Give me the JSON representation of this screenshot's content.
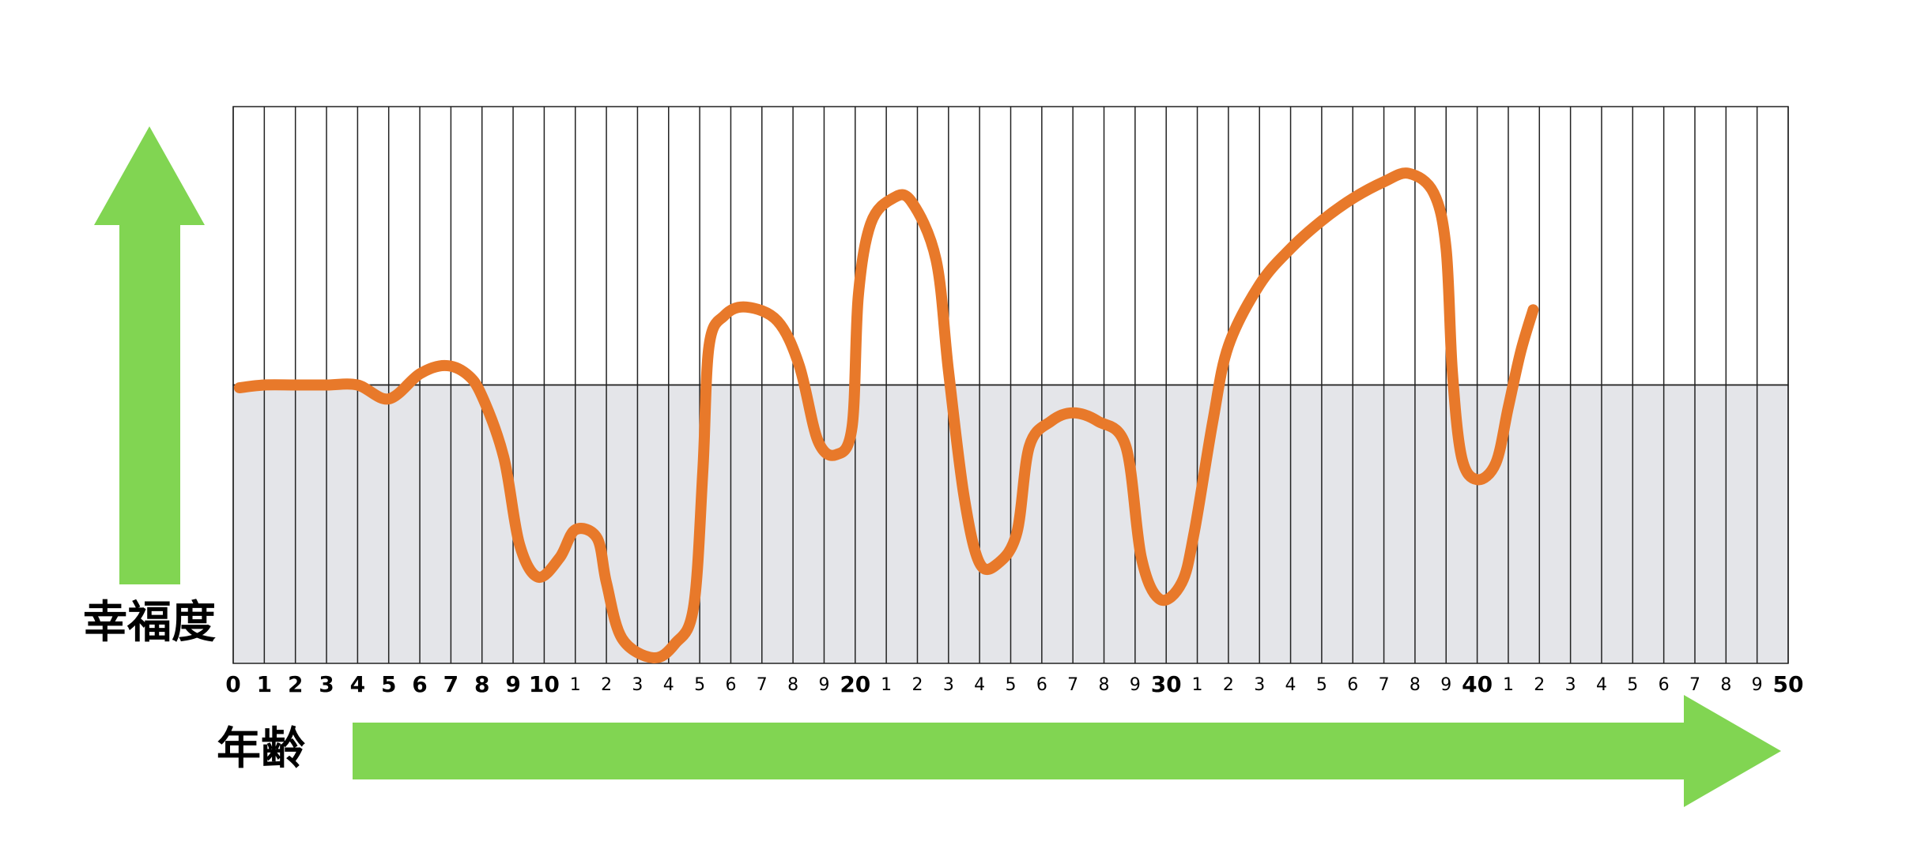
{
  "chart_data": {
    "type": "line",
    "y_label": "幸福度",
    "x_label": "年齢",
    "xlim": [
      0,
      50
    ],
    "ylim": [
      -100,
      100
    ],
    "xticks": [
      0,
      1,
      2,
      3,
      4,
      5,
      6,
      7,
      8,
      9,
      10,
      {
        "value": 11,
        "label": "1"
      },
      {
        "value": 12,
        "label": "2"
      },
      {
        "value": 13,
        "label": "3"
      },
      {
        "value": 14,
        "label": "4"
      },
      {
        "value": 15,
        "label": "5"
      },
      {
        "value": 16,
        "label": "6"
      },
      {
        "value": 17,
        "label": "7"
      },
      {
        "value": 18,
        "label": "8"
      },
      {
        "value": 19,
        "label": "9"
      },
      20,
      {
        "value": 21,
        "label": "1"
      },
      {
        "value": 22,
        "label": "2"
      },
      {
        "value": 23,
        "label": "3"
      },
      {
        "value": 24,
        "label": "4"
      },
      {
        "value": 25,
        "label": "5"
      },
      {
        "value": 26,
        "label": "6"
      },
      {
        "value": 27,
        "label": "7"
      },
      {
        "value": 28,
        "label": "8"
      },
      {
        "value": 29,
        "label": "9"
      },
      30,
      {
        "value": 31,
        "label": "1"
      },
      {
        "value": 32,
        "label": "2"
      },
      {
        "value": 33,
        "label": "3"
      },
      {
        "value": 34,
        "label": "4"
      },
      {
        "value": 35,
        "label": "5"
      },
      {
        "value": 36,
        "label": "6"
      },
      {
        "value": 37,
        "label": "7"
      },
      {
        "value": 38,
        "label": "8"
      },
      {
        "value": 39,
        "label": "9"
      },
      40,
      {
        "value": 41,
        "label": "1"
      },
      {
        "value": 42,
        "label": "2"
      },
      {
        "value": 43,
        "label": "3"
      },
      {
        "value": 44,
        "label": "4"
      },
      {
        "value": 45,
        "label": "5"
      },
      {
        "value": 46,
        "label": "6"
      },
      {
        "value": 47,
        "label": "7"
      },
      {
        "value": 48,
        "label": "8"
      },
      {
        "value": 49,
        "label": "9"
      },
      50
    ],
    "grid": true,
    "color": "#e8792a",
    "negative_fill": "#e4e5e9",
    "x": [
      0.2,
      1,
      2,
      3,
      4,
      5,
      6,
      6.8,
      7.5,
      8,
      8.7,
      9.2,
      9.8,
      10.5,
      11,
      11.7,
      12,
      12.5,
      13.5,
      14.2,
      14.8,
      15.1,
      15.3,
      15.8,
      16.5,
      17.5,
      18.2,
      18.8,
      19.4,
      19.9,
      20.1,
      20.5,
      21.2,
      21.8,
      22.6,
      23,
      23.5,
      24,
      24.6,
      25.2,
      25.6,
      26.3,
      27,
      27.8,
      28.7,
      29.2,
      29.8,
      30.5,
      30.9,
      31.5,
      32,
      33,
      34,
      35,
      36,
      37,
      37.8,
      38.6,
      39,
      39.2,
      39.5,
      40,
      40.6,
      41,
      41.4,
      41.8
    ],
    "values": [
      -1,
      0,
      0,
      0,
      0,
      -5,
      4,
      7,
      4,
      -4,
      -26,
      -57,
      -69,
      -62,
      -52,
      -55,
      -71,
      -91,
      -98,
      -93,
      -80,
      -31,
      14,
      25,
      28,
      23,
      7,
      -20,
      -25,
      -15,
      32,
      58,
      67,
      66,
      45,
      5,
      -40,
      -64,
      -64,
      -53,
      -22,
      -13,
      -10,
      -13,
      -22,
      -62,
      -77,
      -71,
      -53,
      -13,
      14,
      36,
      49,
      59,
      67,
      73,
      76,
      69,
      49,
      5,
      -26,
      -34,
      -28,
      -8,
      12,
      27
    ]
  }
}
